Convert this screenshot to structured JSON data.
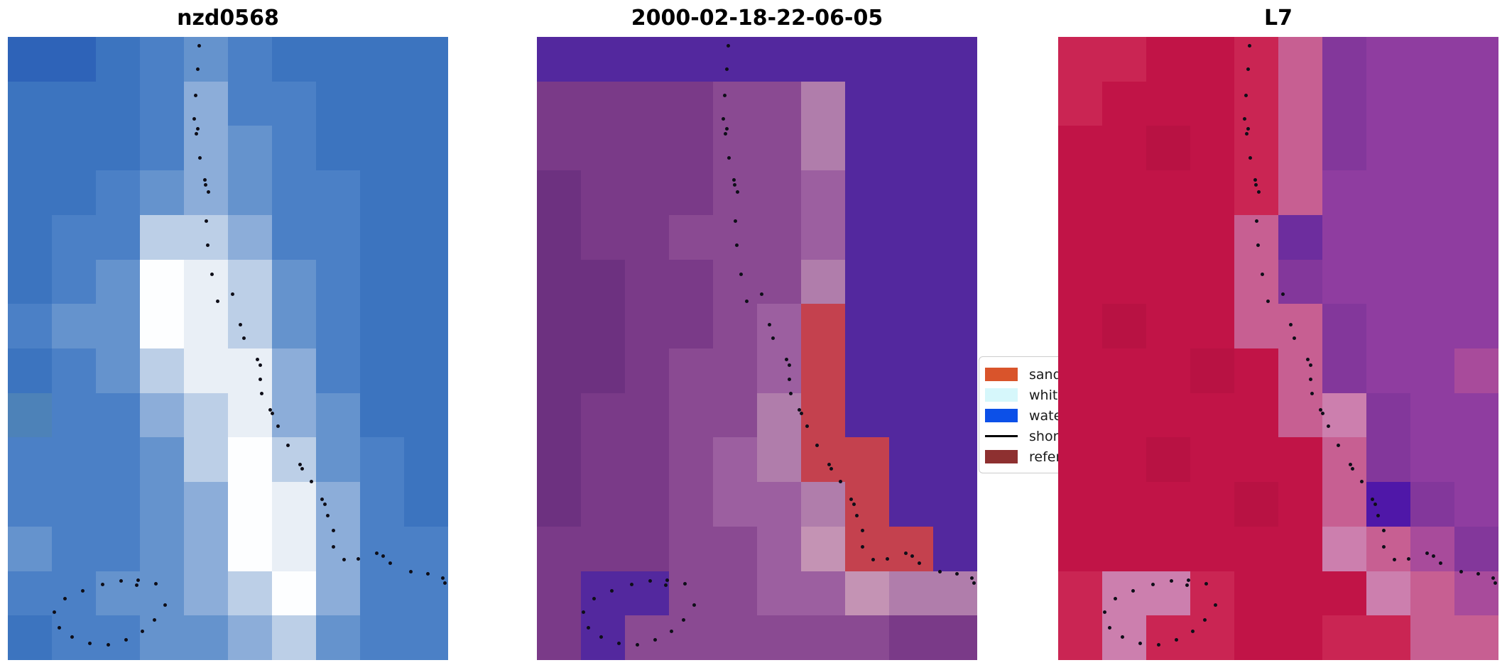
{
  "chart_data": {
    "type": "heatmap",
    "description": "Three-panel coastal satellite image comparison with classified shoreline overlay and reference shoreline dots",
    "palette": {
      "b0": "#2e63b8",
      "b1": "#3c74bf",
      "b2": "#4b80c6",
      "b3": "#6593cd",
      "b4": "#8cadd9",
      "b5": "#bccfe7",
      "w0": "#e9eff6",
      "w1": "#fdfeff",
      "t0": "#4d82b8",
      "w": "#53289e",
      "l0": "#6d3180",
      "l1": "#7a3a88",
      "l2": "#8a4a92",
      "l3": "#9c5fa0",
      "p0": "#b07dab",
      "p1": "#c493b4",
      "r": "#c4414e",
      "r0": "#c11447",
      "r1": "#ca2553",
      "r2": "#b81243",
      "k0": "#c75f92",
      "k1": "#cc7fae",
      "u0": "#8f3da0",
      "u1": "#83379b",
      "u2": "#6d2d9e",
      "u3": "#4f17a8",
      "m": "#a84b9b"
    },
    "panels": [
      {
        "title": "nzd0568",
        "grid": [
          [
            "b0",
            "b0",
            "b1",
            "b2",
            "b3",
            "b2",
            "b1",
            "b1",
            "b1",
            "b1"
          ],
          [
            "b1",
            "b1",
            "b1",
            "b2",
            "b4",
            "b2",
            "b2",
            "b1",
            "b1",
            "b1"
          ],
          [
            "b1",
            "b1",
            "b1",
            "b2",
            "b4",
            "b3",
            "b2",
            "b1",
            "b1",
            "b1"
          ],
          [
            "b1",
            "b1",
            "b2",
            "b3",
            "b4",
            "b3",
            "b2",
            "b2",
            "b1",
            "b1"
          ],
          [
            "b1",
            "b2",
            "b2",
            "b5",
            "b5",
            "b4",
            "b2",
            "b2",
            "b1",
            "b1"
          ],
          [
            "b1",
            "b2",
            "b3",
            "w1",
            "w0",
            "b5",
            "b3",
            "b2",
            "b1",
            "b1"
          ],
          [
            "b2",
            "b3",
            "b3",
            "w1",
            "w0",
            "b5",
            "b3",
            "b2",
            "b1",
            "b1"
          ],
          [
            "b1",
            "b2",
            "b3",
            "b5",
            "w0",
            "w0",
            "b4",
            "b2",
            "b1",
            "b1"
          ],
          [
            "t0",
            "b2",
            "b2",
            "b4",
            "b5",
            "w0",
            "b4",
            "b3",
            "b1",
            "b1"
          ],
          [
            "b2",
            "b2",
            "b2",
            "b3",
            "b5",
            "w1",
            "b5",
            "b3",
            "b2",
            "b1"
          ],
          [
            "b2",
            "b2",
            "b2",
            "b3",
            "b4",
            "w1",
            "w0",
            "b4",
            "b2",
            "b1"
          ],
          [
            "b3",
            "b2",
            "b2",
            "b3",
            "b4",
            "w1",
            "w0",
            "b4",
            "b2",
            "b2"
          ],
          [
            "b2",
            "b2",
            "b3",
            "b3",
            "b4",
            "b5",
            "w1",
            "b4",
            "b2",
            "b2"
          ],
          [
            "b1",
            "b2",
            "b2",
            "b3",
            "b3",
            "b4",
            "b5",
            "b3",
            "b2",
            "b2"
          ]
        ]
      },
      {
        "title": "2000-02-18-22-06-05",
        "top_strip": "w",
        "grid": [
          [
            "w",
            "w",
            "w",
            "w",
            "w",
            "w",
            "w",
            "w",
            "w",
            "w"
          ],
          [
            "l1",
            "l1",
            "l1",
            "l1",
            "l2",
            "l2",
            "p0",
            "w",
            "w",
            "w"
          ],
          [
            "l1",
            "l1",
            "l1",
            "l1",
            "l2",
            "l2",
            "p0",
            "w",
            "w",
            "w"
          ],
          [
            "l0",
            "l1",
            "l1",
            "l1",
            "l2",
            "l2",
            "l3",
            "w",
            "w",
            "w"
          ],
          [
            "l0",
            "l1",
            "l1",
            "l2",
            "l2",
            "l2",
            "l3",
            "w",
            "w",
            "w"
          ],
          [
            "l0",
            "l0",
            "l1",
            "l1",
            "l2",
            "l2",
            "p0",
            "w",
            "w",
            "w"
          ],
          [
            "l0",
            "l0",
            "l1",
            "l1",
            "l2",
            "l3",
            "r",
            "w",
            "w",
            "w"
          ],
          [
            "l0",
            "l0",
            "l1",
            "l2",
            "l2",
            "l3",
            "r",
            "w",
            "w",
            "w"
          ],
          [
            "l0",
            "l1",
            "l1",
            "l2",
            "l2",
            "p0",
            "r",
            "w",
            "w",
            "w"
          ],
          [
            "l0",
            "l1",
            "l1",
            "l2",
            "l3",
            "p0",
            "r",
            "r",
            "w",
            "w"
          ],
          [
            "l0",
            "l1",
            "l1",
            "l2",
            "l3",
            "l3",
            "p0",
            "r",
            "w",
            "w"
          ],
          [
            "l1",
            "l1",
            "l1",
            "l2",
            "l2",
            "l3",
            "p1",
            "r",
            "r",
            "w"
          ],
          [
            "l1",
            "w",
            "w",
            "l2",
            "l2",
            "l3",
            "l3",
            "p1",
            "p0",
            "p0"
          ],
          [
            "l1",
            "w",
            "l2",
            "l2",
            "l2",
            "l2",
            "l2",
            "l2",
            "l1",
            "l1"
          ]
        ]
      },
      {
        "title": "L7",
        "grid": [
          [
            "r1",
            "r1",
            "r0",
            "r0",
            "r1",
            "k0",
            "u1",
            "u0",
            "u0",
            "u0"
          ],
          [
            "r1",
            "r0",
            "r0",
            "r0",
            "r1",
            "k0",
            "u1",
            "u0",
            "u0",
            "u0"
          ],
          [
            "r0",
            "r0",
            "r2",
            "r0",
            "r1",
            "k0",
            "u1",
            "u0",
            "u0",
            "u0"
          ],
          [
            "r0",
            "r0",
            "r0",
            "r0",
            "r1",
            "k0",
            "u0",
            "u0",
            "u0",
            "u0"
          ],
          [
            "r0",
            "r0",
            "r0",
            "r0",
            "k0",
            "u2",
            "u0",
            "u0",
            "u0",
            "u0"
          ],
          [
            "r0",
            "r0",
            "r0",
            "r0",
            "k0",
            "u1",
            "u0",
            "u0",
            "u0",
            "u0"
          ],
          [
            "r0",
            "r2",
            "r0",
            "r0",
            "k0",
            "k0",
            "u1",
            "u0",
            "u0",
            "u0"
          ],
          [
            "r0",
            "r0",
            "r0",
            "r2",
            "r0",
            "k0",
            "u1",
            "u0",
            "u0",
            "m"
          ],
          [
            "r0",
            "r0",
            "r0",
            "r0",
            "r0",
            "k0",
            "k1",
            "u1",
            "u0",
            "u0"
          ],
          [
            "r0",
            "r0",
            "r2",
            "r0",
            "r0",
            "r0",
            "k0",
            "u1",
            "u0",
            "u0"
          ],
          [
            "r0",
            "r0",
            "r0",
            "r0",
            "r2",
            "r0",
            "k0",
            "u3",
            "u1",
            "u0"
          ],
          [
            "r0",
            "r0",
            "r0",
            "r0",
            "r0",
            "r0",
            "k1",
            "k0",
            "m",
            "u1"
          ],
          [
            "r1",
            "k1",
            "k1",
            "r1",
            "r0",
            "r0",
            "r0",
            "k1",
            "k0",
            "m"
          ],
          [
            "r1",
            "k1",
            "r1",
            "r1",
            "r0",
            "r0",
            "r1",
            "r1",
            "k0",
            "k0"
          ]
        ]
      }
    ],
    "shoreline_dots": [
      [
        0.435,
        0.014
      ],
      [
        0.431,
        0.052
      ],
      [
        0.427,
        0.094
      ],
      [
        0.423,
        0.132
      ],
      [
        0.431,
        0.147
      ],
      [
        0.429,
        0.155
      ],
      [
        0.436,
        0.194
      ],
      [
        0.447,
        0.229
      ],
      [
        0.449,
        0.237
      ],
      [
        0.456,
        0.249
      ],
      [
        0.451,
        0.296
      ],
      [
        0.454,
        0.334
      ],
      [
        0.464,
        0.381
      ],
      [
        0.476,
        0.424
      ],
      [
        0.511,
        0.413
      ],
      [
        0.528,
        0.462
      ],
      [
        0.537,
        0.484
      ],
      [
        0.567,
        0.518
      ],
      [
        0.573,
        0.527
      ],
      [
        0.574,
        0.549
      ],
      [
        0.577,
        0.572
      ],
      [
        0.596,
        0.598
      ],
      [
        0.601,
        0.604
      ],
      [
        0.613,
        0.625
      ],
      [
        0.637,
        0.655
      ],
      [
        0.663,
        0.686
      ],
      [
        0.668,
        0.693
      ],
      [
        0.69,
        0.714
      ],
      [
        0.713,
        0.742
      ],
      [
        0.72,
        0.75
      ],
      [
        0.727,
        0.768
      ],
      [
        0.739,
        0.792
      ],
      [
        0.74,
        0.818
      ],
      [
        0.763,
        0.839
      ],
      [
        0.796,
        0.838
      ],
      [
        0.838,
        0.829
      ],
      [
        0.852,
        0.833
      ],
      [
        0.868,
        0.845
      ],
      [
        0.915,
        0.858
      ],
      [
        0.954,
        0.862
      ],
      [
        0.988,
        0.869
      ],
      [
        0.992,
        0.876
      ],
      [
        0.337,
        0.878
      ],
      [
        0.296,
        0.872
      ],
      [
        0.292,
        0.88
      ],
      [
        0.257,
        0.873
      ],
      [
        0.215,
        0.879
      ],
      [
        0.17,
        0.889
      ],
      [
        0.13,
        0.901
      ],
      [
        0.106,
        0.923
      ],
      [
        0.117,
        0.948
      ],
      [
        0.146,
        0.963
      ],
      [
        0.186,
        0.973
      ],
      [
        0.228,
        0.976
      ],
      [
        0.268,
        0.968
      ],
      [
        0.305,
        0.954
      ],
      [
        0.333,
        0.936
      ],
      [
        0.358,
        0.912
      ]
    ],
    "legend": {
      "items": [
        {
          "label": "sand",
          "color": "#d9542b",
          "type": "patch"
        },
        {
          "label": "white",
          "color": "#d6f7fb",
          "type": "patch"
        },
        {
          "label": "water",
          "color": "#0c50e8",
          "type": "patch"
        },
        {
          "label": "shore",
          "color": "#000000",
          "type": "line"
        },
        {
          "label": "refer",
          "color": "#8e3030",
          "type": "patch"
        }
      ]
    }
  }
}
